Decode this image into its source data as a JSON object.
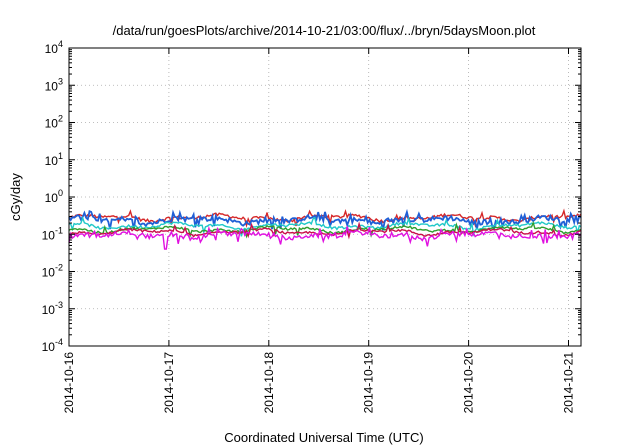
{
  "chart_data": {
    "type": "line",
    "title": "/data/run/goesPlots/archive/2014-10-21/03:00/flux/../bryn/5daysMoon.plot",
    "xlabel": "Coordinated Universal Time (UTC)",
    "ylabel": "cGy/day",
    "yscale": "log",
    "ylim": [
      0.0001,
      10000
    ],
    "xlim": [
      "2014-10-16 00:00",
      "2014-10-21 03:00"
    ],
    "grid": true,
    "legend": "none",
    "x_ticks": [
      "2014-10-16",
      "2014-10-17",
      "2014-10-18",
      "2014-10-19",
      "2014-10-20",
      "2014-10-21"
    ],
    "y_ticks": [
      {
        "base": "10",
        "exp": "4"
      },
      {
        "base": "10",
        "exp": "3"
      },
      {
        "base": "10",
        "exp": "2"
      },
      {
        "base": "10",
        "exp": "1"
      },
      {
        "base": "10",
        "exp": "0"
      },
      {
        "base": "10",
        "exp": "-1"
      },
      {
        "base": "10",
        "exp": "-2"
      },
      {
        "base": "10",
        "exp": "-3"
      },
      {
        "base": "10",
        "exp": "-4"
      }
    ],
    "series": [
      {
        "color": "#d62728",
        "base": 0.28,
        "noise": 0.1,
        "spike": 0.05
      },
      {
        "color": "#1f5fd6",
        "base": 0.24,
        "noise": 0.16,
        "spike": 0.12
      },
      {
        "color": "#20c8c8",
        "base": 0.17,
        "noise": 0.08,
        "spike": 0.05
      },
      {
        "color": "#2e9e2e",
        "base": 0.135,
        "noise": 0.07,
        "spike": 0.04
      },
      {
        "color": "#c8104a",
        "base": 0.115,
        "noise": 0.07,
        "spike": 0.05
      },
      {
        "color": "#e010e0",
        "base": 0.095,
        "noise": 0.14,
        "spike": 0.14
      }
    ],
    "dip": {
      "date": "2014-10-16 23:00",
      "value": 0.04
    }
  }
}
